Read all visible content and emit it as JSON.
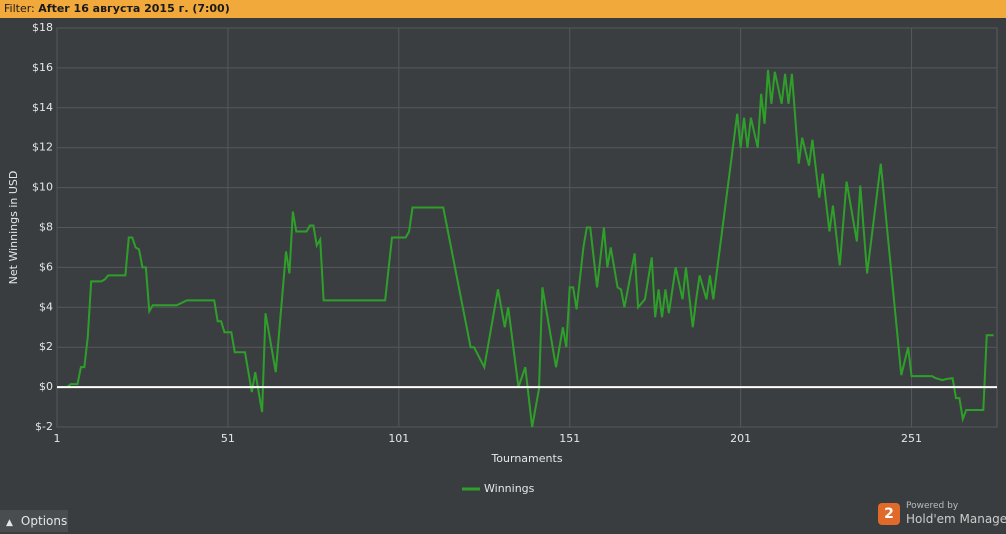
{
  "filter_label": "Filter:",
  "filter_value": "After 16 августа 2015 г. (7:00)",
  "options_label": "Options",
  "powered_by": "Powered by",
  "brand": "Hold'em Manager",
  "brand_badge": "2",
  "chart_data": {
    "type": "line",
    "x_label": "Tournaments",
    "y_label": "Net Winnings in USD",
    "xlim": [
      1,
      276
    ],
    "xticks": [
      1,
      51,
      101,
      151,
      201,
      251
    ],
    "ylim": [
      -2,
      18
    ],
    "yticks": [
      {
        "value": -2,
        "label": "$-2"
      },
      {
        "value": 0,
        "label": "$0"
      },
      {
        "value": 2,
        "label": "$2"
      },
      {
        "value": 4,
        "label": "$4"
      },
      {
        "value": 6,
        "label": "$6"
      },
      {
        "value": 8,
        "label": "$8"
      },
      {
        "value": 10,
        "label": "$10"
      },
      {
        "value": 12,
        "label": "$12"
      },
      {
        "value": 14,
        "label": "$14"
      },
      {
        "value": 16,
        "label": "$16"
      },
      {
        "value": 18,
        "label": "$18"
      }
    ],
    "grid": true,
    "legend": "bottom",
    "x": [
      1,
      4,
      5,
      7,
      8,
      9,
      10,
      11,
      14,
      15,
      16,
      21,
      22,
      23,
      24,
      25,
      26,
      27,
      28,
      29,
      36,
      39,
      47,
      48,
      49,
      50,
      52,
      53,
      56,
      58,
      59,
      61,
      62,
      65,
      68,
      69,
      70,
      71,
      74,
      75,
      76,
      77,
      78,
      79,
      97,
      99,
      103,
      104,
      105,
      114,
      122,
      123,
      126,
      130,
      132,
      133,
      136,
      138,
      140,
      142,
      143,
      147,
      149,
      150,
      151,
      152,
      153,
      155,
      156,
      157,
      159,
      161,
      162,
      163,
      165,
      166,
      167,
      170,
      171,
      173,
      175,
      176,
      177,
      178,
      179,
      180,
      182,
      184,
      185,
      187,
      188,
      189,
      191,
      192,
      193,
      200,
      201,
      202,
      203,
      204,
      206,
      207,
      208,
      209,
      210,
      211,
      213,
      214,
      215,
      216,
      218,
      219,
      221,
      222,
      224,
      225,
      227,
      228,
      230,
      232,
      235,
      236,
      238,
      242,
      248,
      250,
      251,
      257,
      258,
      260,
      261,
      263,
      264,
      265,
      266,
      267,
      272,
      273,
      275
    ],
    "series": [
      {
        "name": "Winnings",
        "color": "#2ea02a",
        "values": [
          0,
          0,
          0.15,
          0.15,
          1,
          1,
          2.5,
          5.3,
          5.3,
          5.4,
          5.6,
          5.6,
          7.5,
          7.5,
          7.0,
          6.9,
          6.0,
          6.0,
          3.8,
          4.1,
          4.1,
          4.35,
          4.35,
          3.3,
          3.3,
          2.75,
          2.75,
          1.75,
          1.75,
          -0.25,
          0.75,
          -1.25,
          3.7,
          0.75,
          6.8,
          5.7,
          8.8,
          7.8,
          7.8,
          8.1,
          8.1,
          7.1,
          7.4,
          4.35,
          4.35,
          7.5,
          7.5,
          7.8,
          9.0,
          9.0,
          2,
          2,
          1,
          4.9,
          3.0,
          4.0,
          0,
          1,
          -2,
          -0.1,
          5,
          1,
          3,
          2,
          5,
          5,
          3.9,
          7,
          8,
          8,
          5,
          8,
          6,
          7,
          5,
          4.9,
          4,
          6.7,
          4,
          4.4,
          6.5,
          3.5,
          4.9,
          3.5,
          4.9,
          3.7,
          6,
          4.4,
          6,
          3,
          4.4,
          5.6,
          4.4,
          5.6,
          4.4,
          13.7,
          12,
          13.5,
          12,
          13.5,
          12,
          14.7,
          13.2,
          15.9,
          14.2,
          15.8,
          14.2,
          15.7,
          14.2,
          15.7,
          11.2,
          12.5,
          11.1,
          12.4,
          9.5,
          10.7,
          7.8,
          9.1,
          6.1,
          10.3,
          7.3,
          10.1,
          5.7,
          11.2,
          0.6,
          2,
          0.55,
          0.55,
          0.45,
          0.35,
          0.4,
          0.45,
          -0.55,
          -0.55,
          -1.6,
          -1.15,
          -1.15,
          2.6,
          2.6
        ]
      }
    ]
  }
}
